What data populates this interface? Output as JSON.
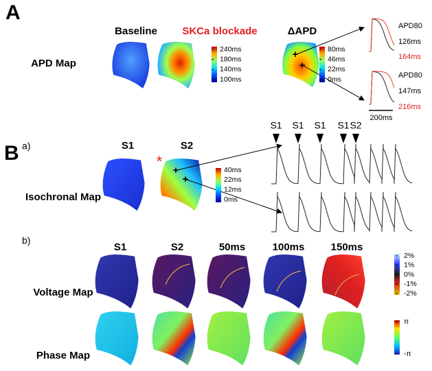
{
  "panel_a": {
    "label": "A",
    "row_label": "APD Map",
    "columns": [
      "Baseline",
      "SKCa blockade",
      "ΔAPD"
    ],
    "apd_colorbar": [
      "240ms",
      "180ms",
      "140ms",
      "100ms"
    ],
    "delta_colorbar": [
      "80ms",
      "46ms",
      "22ms",
      "0ms"
    ],
    "traces": [
      {
        "title": "APD80",
        "baseline": "126ms",
        "blockade": "164ms"
      },
      {
        "title": "APD80",
        "baseline": "147ms",
        "blockade": "216ms"
      }
    ],
    "scale_bar": "200ms"
  },
  "panel_b": {
    "label": "B",
    "sub_a": "a)",
    "iso_columns": [
      "S1",
      "S2"
    ],
    "marker": "*",
    "iso_row_label": "Isochronal Map",
    "iso_colorbar": [
      "40ms",
      "22ms",
      "12ms",
      "0ms"
    ],
    "stimuli": [
      "S1",
      "S1",
      "S1",
      "S1",
      "S2"
    ],
    "sub_b": "b)",
    "columns": [
      "S1",
      "S2",
      "50ms",
      "100ms",
      "150ms"
    ],
    "rows": [
      "Voltage Map",
      "Phase Map"
    ],
    "voltage_colorbar": [
      "2%",
      "1%",
      "0%",
      "-1%",
      "-2%"
    ],
    "phase_colorbar": [
      "π",
      "-π"
    ]
  }
}
